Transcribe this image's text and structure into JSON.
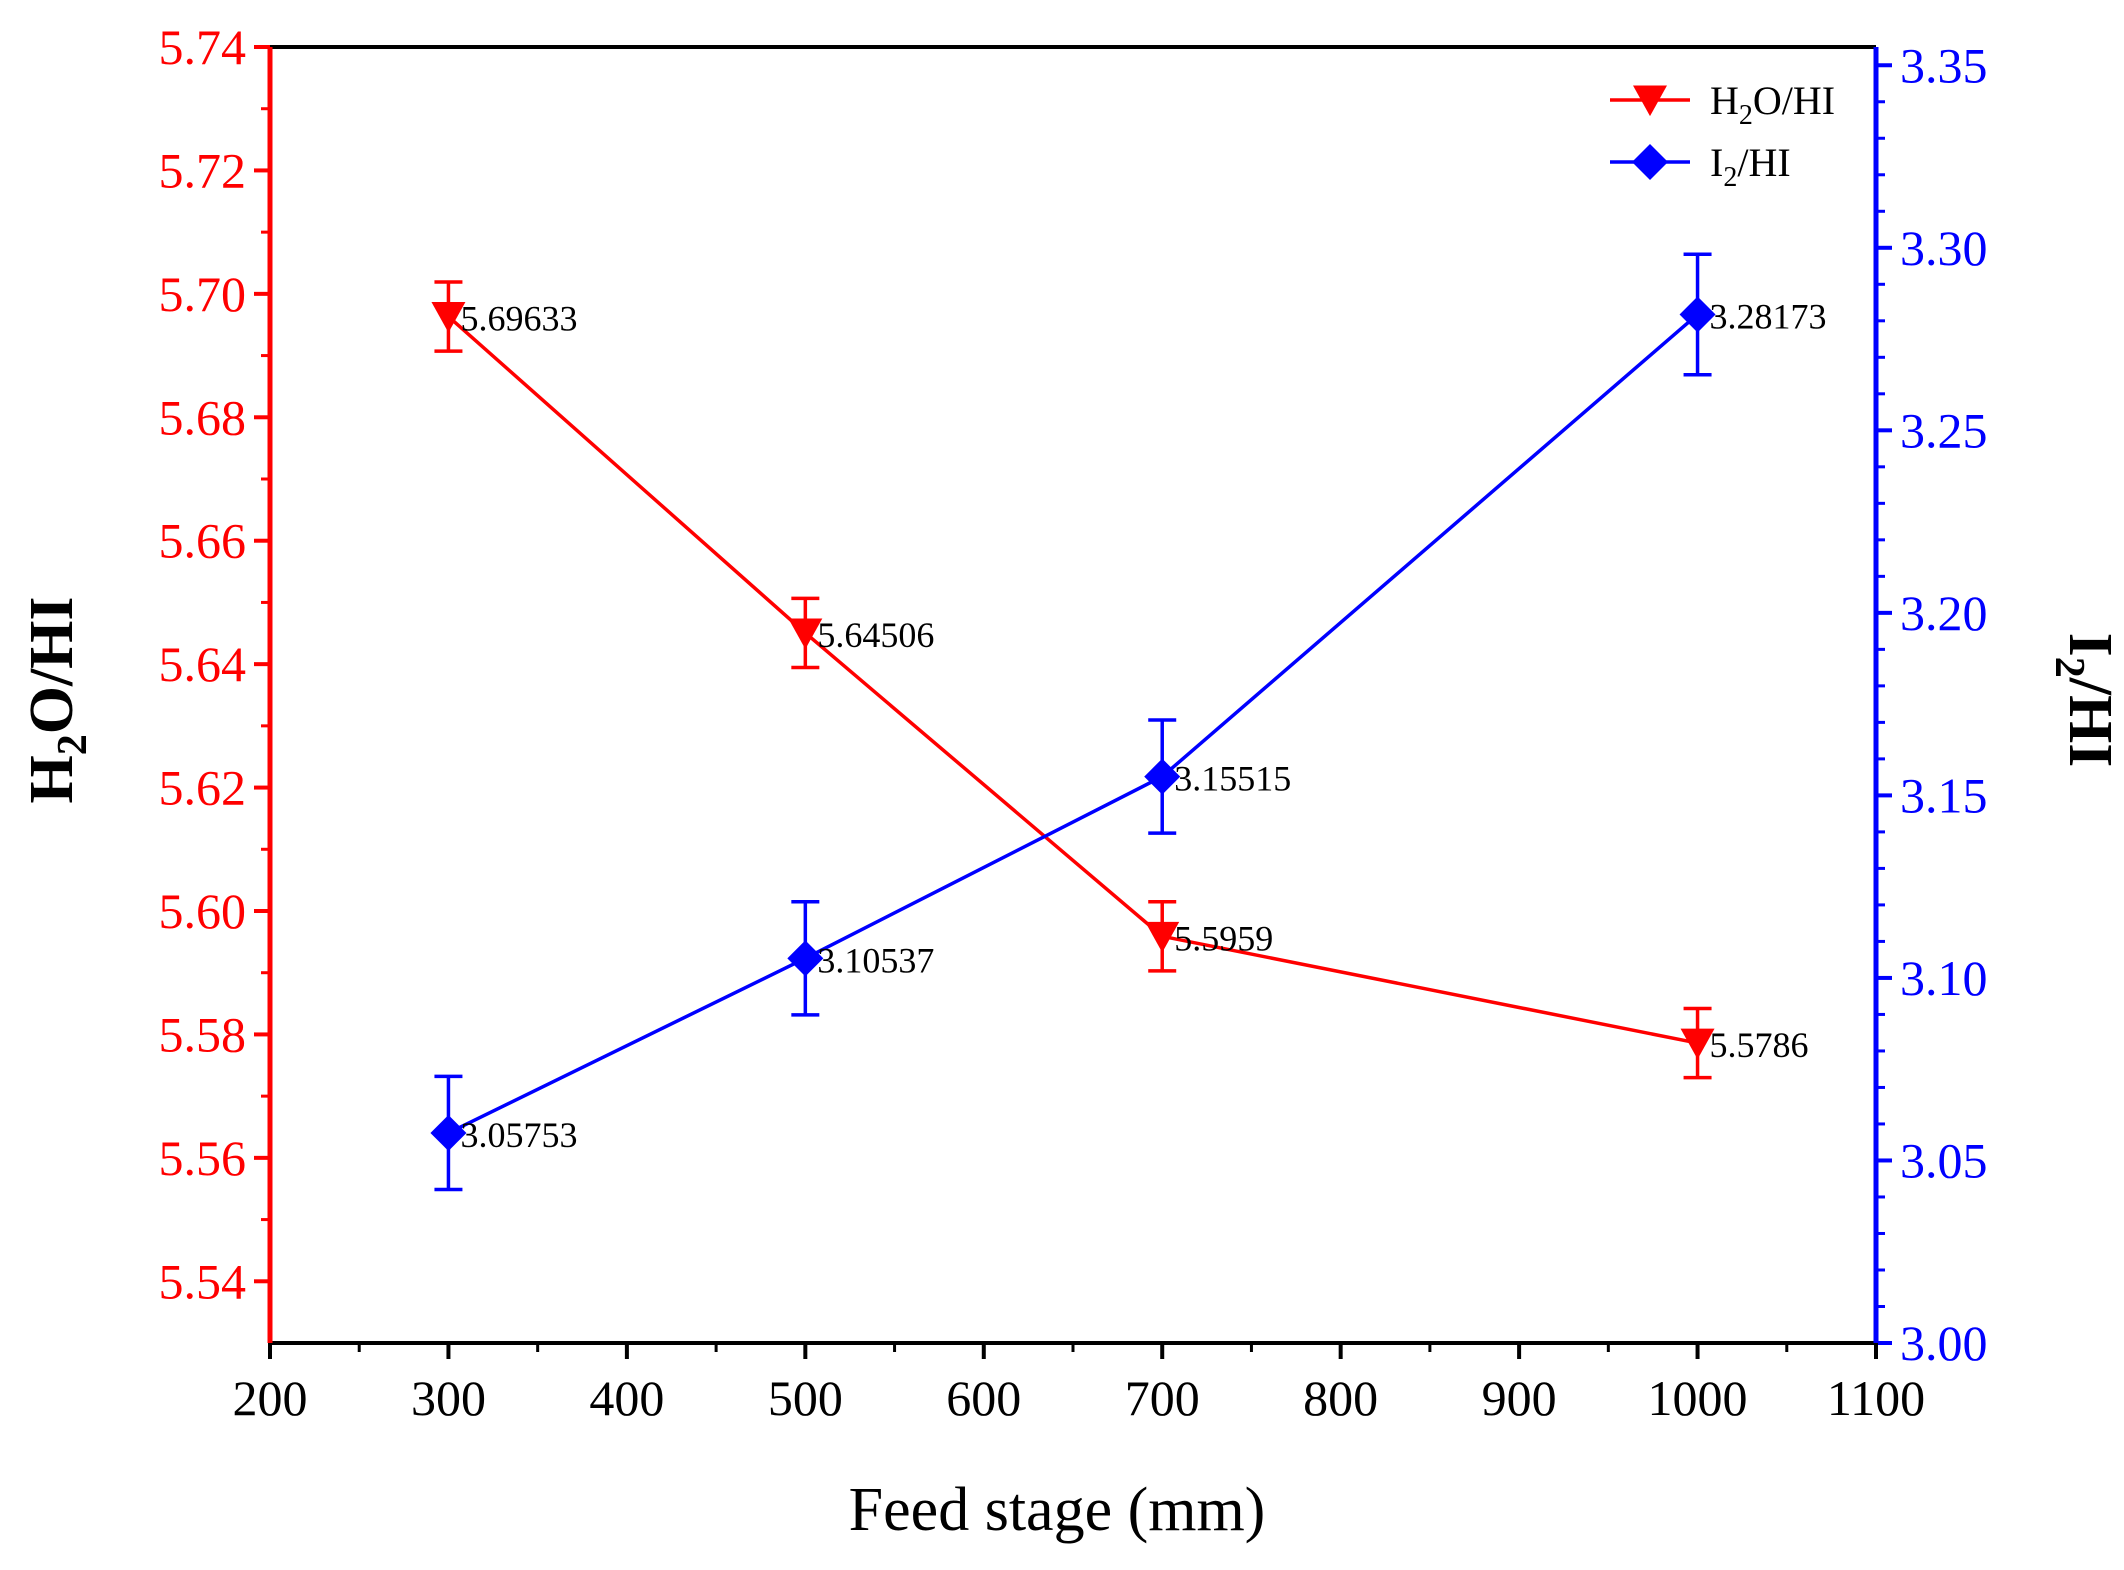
{
  "chart_data": {
    "type": "line",
    "xlabel": "Feed stage (mm)",
    "xlim": [
      200,
      1100
    ],
    "xticks": [
      200,
      300,
      400,
      500,
      600,
      700,
      800,
      900,
      1000,
      1100
    ],
    "x": [
      300,
      500,
      700,
      1000
    ],
    "left_axis": {
      "label_main": "H",
      "label_sub": "2",
      "label_rest": "O/HI",
      "ylim": [
        5.53,
        5.74
      ],
      "ticks": [
        "5.54",
        "5.56",
        "5.58",
        "5.60",
        "5.62",
        "5.64",
        "5.66",
        "5.68",
        "5.70",
        "5.72",
        "5.74"
      ],
      "color": "#ff0000"
    },
    "right_axis": {
      "label_main": "I",
      "label_sub": "2",
      "label_rest": "/HI",
      "ylim": [
        3.0,
        3.355
      ],
      "ticks": [
        "3.00",
        "3.05",
        "3.10",
        "3.15",
        "3.20",
        "3.25",
        "3.30",
        "3.35"
      ],
      "color": "#0000ff"
    },
    "series": [
      {
        "name": "H2O/HI",
        "legend_main": "H",
        "legend_sub": "2",
        "legend_rest": "O/HI",
        "axis": "left",
        "marker": "triangle-down",
        "color": "#ff0000",
        "values": [
          5.69633,
          5.64506,
          5.5959,
          5.5786
        ],
        "labels": [
          "5.69633",
          "5.64506",
          "5.5959",
          "5.5786"
        ],
        "errors": [
          0.0056,
          0.0056,
          0.0056,
          0.0056
        ]
      },
      {
        "name": "I2/HI",
        "legend_main": "I",
        "legend_sub": "2",
        "legend_rest": "/HI",
        "axis": "right",
        "marker": "diamond",
        "color": "#0000ff",
        "values": [
          3.05753,
          3.10537,
          3.15515,
          3.28173
        ],
        "labels": [
          "3.05753",
          "3.10537",
          "3.15515",
          "3.28173"
        ],
        "errors": [
          0.0155,
          0.0155,
          0.0155,
          0.0165
        ]
      }
    ],
    "legend_position": "top-right"
  }
}
